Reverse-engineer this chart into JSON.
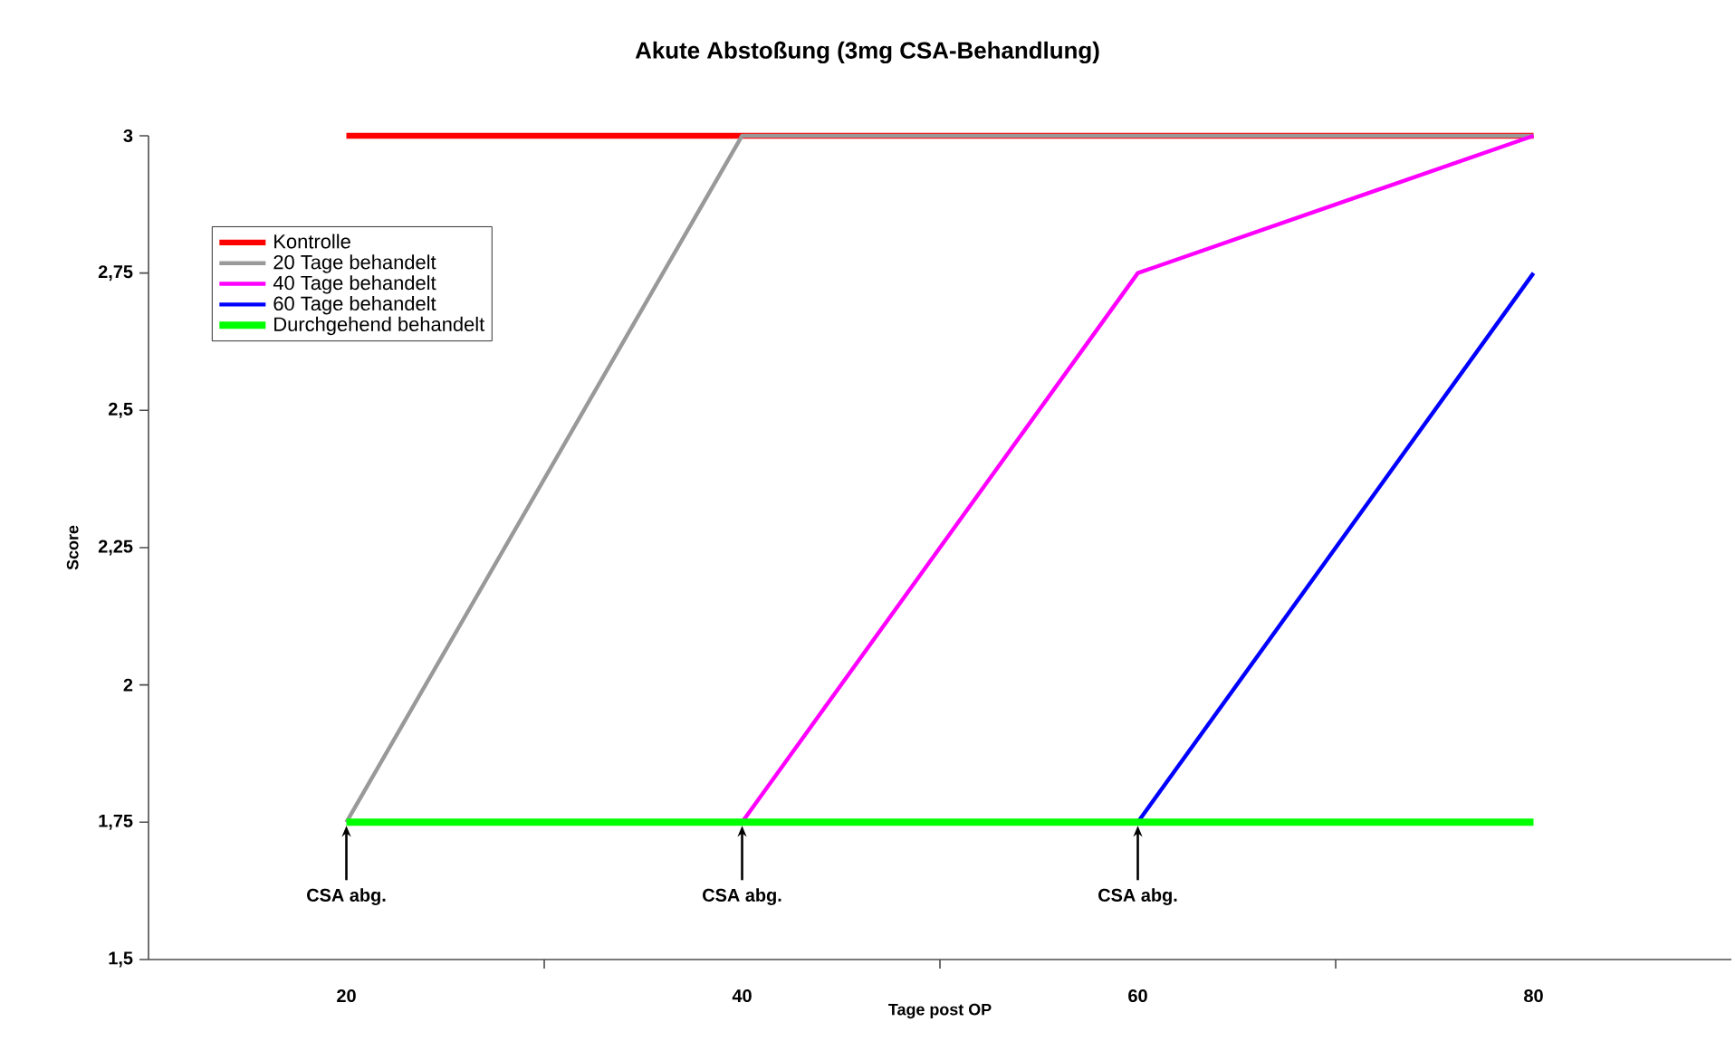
{
  "chart_data": {
    "type": "line",
    "title": "Akute Abstoßung (3mg CSA-Behandlung)",
    "xlabel": "Tage post OP",
    "ylabel": "Score",
    "categories": [
      "20",
      "40",
      "60",
      "80"
    ],
    "series": [
      {
        "name": "Kontrolle",
        "color": "#ff0000",
        "values": [
          3,
          3,
          3,
          3
        ]
      },
      {
        "name": "20 Tage behandelt",
        "color": "#999999",
        "values": [
          1.75,
          3,
          3,
          3
        ]
      },
      {
        "name": "40 Tage behandelt",
        "color": "#ff00ff",
        "values": [
          null,
          1.75,
          2.75,
          3
        ]
      },
      {
        "name": "60 Tage behandelt",
        "color": "#0000ff",
        "values": [
          null,
          null,
          1.75,
          2.75
        ]
      },
      {
        "name": "Durchgehend behandelt",
        "color": "#00ff00",
        "values": [
          1.75,
          1.75,
          1.75,
          1.75
        ]
      }
    ],
    "ylim": [
      1.5,
      3
    ],
    "yticks": [
      {
        "value": 1.5,
        "label": "1,5"
      },
      {
        "value": 1.75,
        "label": "1,75"
      },
      2,
      {
        "value": 2.25,
        "label": "2,25"
      },
      {
        "value": 2.5,
        "label": "2,5"
      },
      {
        "value": 2.75,
        "label": "2,75"
      },
      3
    ],
    "legend": "top left",
    "annotations": [
      {
        "text": "CSA abg.",
        "x": "20",
        "y": 1.75
      },
      {
        "text": "CSA abg.",
        "x": "40",
        "y": 1.75
      },
      {
        "text": "CSA abg.",
        "x": "60",
        "y": 1.75
      }
    ]
  }
}
